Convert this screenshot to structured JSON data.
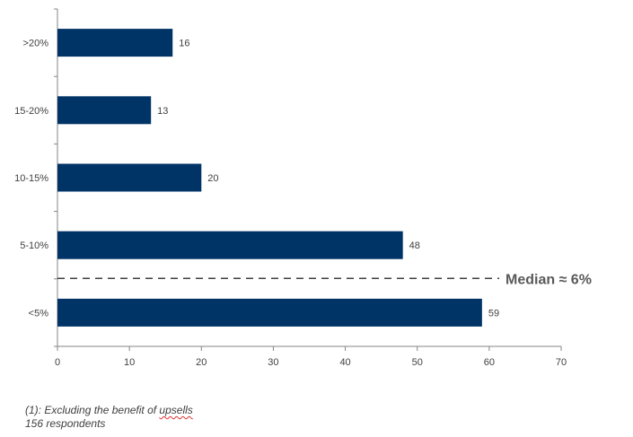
{
  "chart_data": {
    "type": "bar",
    "orientation": "horizontal",
    "categories": [
      ">20%",
      "15-20%",
      "10-15%",
      "5-10%",
      "<5%"
    ],
    "values": [
      16,
      13,
      20,
      48,
      59
    ],
    "data_labels": [
      "16",
      "13",
      "20",
      "48",
      "59"
    ],
    "xlim": [
      0,
      70
    ],
    "x_ticks": [
      0,
      10,
      20,
      30,
      40,
      50,
      60,
      70
    ],
    "x_tick_labels": [
      "0",
      "10",
      "20",
      "30",
      "40",
      "50",
      "60",
      "70"
    ],
    "bar_color": "#003366",
    "grid": false,
    "title": "",
    "xlabel": "",
    "ylabel": "",
    "annotation": {
      "text": "Median ≈ 6%",
      "line_style": "dashed",
      "line_position": "between 5-10% and <5%"
    }
  },
  "footnotes": {
    "line1_prefix": "(1): Excluding the benefit of ",
    "line1_underlined": "upsells",
    "line2": "156 respondents"
  }
}
